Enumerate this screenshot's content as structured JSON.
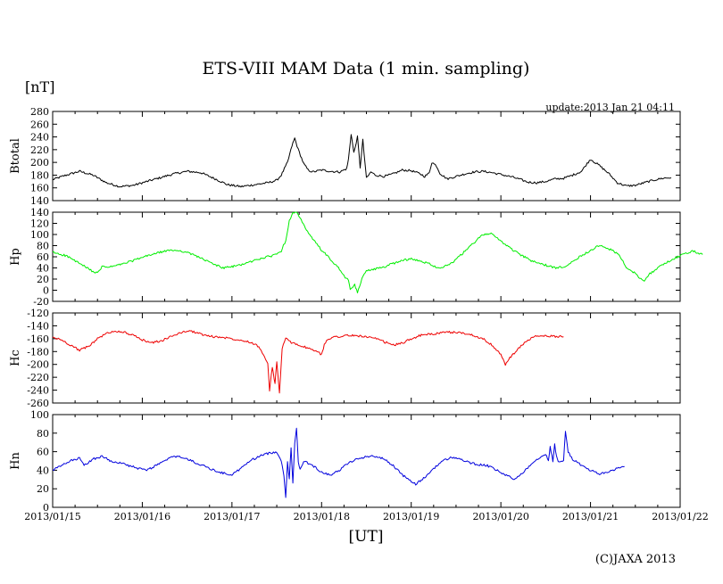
{
  "header": {
    "title": "ETS-VIII MAM Data (1 min. sampling)",
    "unit": "[nT]",
    "update": "update:2013 Jan 21 04:11"
  },
  "footer": {
    "xlabel": "[UT]",
    "copyright": "(C)JAXA 2013"
  },
  "chart_data": {
    "type": "line",
    "title": "ETS-VIII MAM Data (1 min. sampling)",
    "xlabel": "[UT]",
    "ylabel": "[nT]",
    "x_ticks": [
      "2013/01/15",
      "2013/01/16",
      "2013/01/17",
      "2013/01/18",
      "2013/01/19",
      "2013/01/20",
      "2013/01/21",
      "2013/01/22"
    ],
    "x_unit": "days since 2013/01/15 00:00 UT",
    "xlim": [
      0,
      7
    ],
    "panels": [
      {
        "name": "Btotal",
        "color": "#000000",
        "ylim": [
          140,
          280
        ],
        "yticks": [
          140,
          160,
          180,
          200,
          220,
          240,
          260,
          280
        ],
        "points": [
          [
            0,
            173
          ],
          [
            0.15,
            180
          ],
          [
            0.3,
            186
          ],
          [
            0.45,
            180
          ],
          [
            0.6,
            168
          ],
          [
            0.75,
            162
          ],
          [
            0.9,
            164
          ],
          [
            1.05,
            170
          ],
          [
            1.2,
            176
          ],
          [
            1.35,
            182
          ],
          [
            1.5,
            186
          ],
          [
            1.65,
            184
          ],
          [
            1.8,
            175
          ],
          [
            1.95,
            165
          ],
          [
            2.1,
            162
          ],
          [
            2.25,
            165
          ],
          [
            2.4,
            168
          ],
          [
            2.5,
            172
          ],
          [
            2.55,
            180
          ],
          [
            2.62,
            200
          ],
          [
            2.67,
            226
          ],
          [
            2.7,
            238
          ],
          [
            2.74,
            220
          ],
          [
            2.8,
            198
          ],
          [
            2.85,
            188
          ],
          [
            2.9,
            185
          ],
          [
            3.0,
            188
          ],
          [
            3.1,
            186
          ],
          [
            3.2,
            185
          ],
          [
            3.28,
            190
          ],
          [
            3.3,
            205
          ],
          [
            3.33,
            245
          ],
          [
            3.36,
            215
          ],
          [
            3.4,
            240
          ],
          [
            3.43,
            192
          ],
          [
            3.46,
            235
          ],
          [
            3.5,
            175
          ],
          [
            3.55,
            185
          ],
          [
            3.6,
            180
          ],
          [
            3.7,
            178
          ],
          [
            3.8,
            182
          ],
          [
            3.9,
            188
          ],
          [
            4.0,
            187
          ],
          [
            4.1,
            182
          ],
          [
            4.15,
            178
          ],
          [
            4.2,
            183
          ],
          [
            4.23,
            200
          ],
          [
            4.28,
            195
          ],
          [
            4.32,
            183
          ],
          [
            4.4,
            174
          ],
          [
            4.5,
            178
          ],
          [
            4.6,
            182
          ],
          [
            4.7,
            185
          ],
          [
            4.8,
            186
          ],
          [
            4.9,
            184
          ],
          [
            5.0,
            181
          ],
          [
            5.1,
            178
          ],
          [
            5.2,
            174
          ],
          [
            5.3,
            169
          ],
          [
            5.4,
            168
          ],
          [
            5.5,
            170
          ],
          [
            5.6,
            174
          ],
          [
            5.7,
            175
          ],
          [
            5.8,
            180
          ],
          [
            5.9,
            186
          ],
          [
            5.95,
            196
          ],
          [
            6.0,
            205
          ],
          [
            6.05,
            200
          ],
          [
            6.1,
            195
          ],
          [
            6.2,
            183
          ],
          [
            6.3,
            168
          ],
          [
            6.4,
            163
          ],
          [
            6.5,
            164
          ],
          [
            6.6,
            168
          ],
          [
            6.7,
            172
          ],
          [
            6.8,
            175
          ],
          [
            6.9,
            176
          ]
        ]
      },
      {
        "name": "Hp",
        "color": "#00ee00",
        "ylim": [
          -20,
          140
        ],
        "yticks": [
          -20,
          0,
          20,
          40,
          60,
          80,
          100,
          120,
          140
        ],
        "points": [
          [
            0,
            68
          ],
          [
            0.15,
            62
          ],
          [
            0.3,
            48
          ],
          [
            0.4,
            38
          ],
          [
            0.5,
            30
          ],
          [
            0.55,
            42
          ],
          [
            0.65,
            42
          ],
          [
            0.8,
            48
          ],
          [
            0.95,
            56
          ],
          [
            1.1,
            64
          ],
          [
            1.25,
            70
          ],
          [
            1.35,
            72
          ],
          [
            1.45,
            70
          ],
          [
            1.6,
            62
          ],
          [
            1.75,
            50
          ],
          [
            1.9,
            40
          ],
          [
            2.0,
            42
          ],
          [
            2.15,
            48
          ],
          [
            2.3,
            56
          ],
          [
            2.45,
            62
          ],
          [
            2.55,
            70
          ],
          [
            2.6,
            90
          ],
          [
            2.64,
            125
          ],
          [
            2.68,
            140
          ],
          [
            2.72,
            140
          ],
          [
            2.76,
            130
          ],
          [
            2.82,
            110
          ],
          [
            2.9,
            92
          ],
          [
            3.0,
            72
          ],
          [
            3.1,
            55
          ],
          [
            3.2,
            38
          ],
          [
            3.25,
            25
          ],
          [
            3.3,
            18
          ],
          [
            3.32,
            0
          ],
          [
            3.37,
            10
          ],
          [
            3.4,
            -5
          ],
          [
            3.45,
            20
          ],
          [
            3.5,
            36
          ],
          [
            3.6,
            38
          ],
          [
            3.7,
            42
          ],
          [
            3.8,
            48
          ],
          [
            3.9,
            54
          ],
          [
            4.0,
            56
          ],
          [
            4.1,
            52
          ],
          [
            4.2,
            48
          ],
          [
            4.3,
            40
          ],
          [
            4.4,
            44
          ],
          [
            4.5,
            55
          ],
          [
            4.6,
            70
          ],
          [
            4.7,
            85
          ],
          [
            4.8,
            100
          ],
          [
            4.88,
            102
          ],
          [
            4.95,
            95
          ],
          [
            5.05,
            82
          ],
          [
            5.2,
            65
          ],
          [
            5.35,
            52
          ],
          [
            5.5,
            45
          ],
          [
            5.6,
            40
          ],
          [
            5.7,
            42
          ],
          [
            5.8,
            52
          ],
          [
            5.9,
            62
          ],
          [
            6.0,
            72
          ],
          [
            6.1,
            80
          ],
          [
            6.2,
            75
          ],
          [
            6.3,
            66
          ],
          [
            6.35,
            55
          ],
          [
            6.4,
            40
          ],
          [
            6.5,
            30
          ],
          [
            6.55,
            22
          ],
          [
            6.6,
            18
          ],
          [
            6.65,
            28
          ],
          [
            6.75,
            40
          ],
          [
            6.85,
            50
          ],
          [
            6.95,
            58
          ],
          [
            7.05,
            66
          ],
          [
            7.15,
            70
          ],
          [
            7.25,
            64
          ]
        ]
      },
      {
        "name": "Hc",
        "color": "#ee0000",
        "ylim": [
          -260,
          -120
        ],
        "yticks": [
          -260,
          -240,
          -220,
          -200,
          -180,
          -160,
          -140,
          -120
        ],
        "points": [
          [
            0,
            -158
          ],
          [
            0.1,
            -162
          ],
          [
            0.2,
            -170
          ],
          [
            0.3,
            -178
          ],
          [
            0.4,
            -172
          ],
          [
            0.5,
            -160
          ],
          [
            0.6,
            -152
          ],
          [
            0.7,
            -148
          ],
          [
            0.8,
            -150
          ],
          [
            0.9,
            -155
          ],
          [
            1.0,
            -162
          ],
          [
            1.1,
            -166
          ],
          [
            1.2,
            -164
          ],
          [
            1.3,
            -158
          ],
          [
            1.4,
            -152
          ],
          [
            1.5,
            -148
          ],
          [
            1.6,
            -150
          ],
          [
            1.7,
            -155
          ],
          [
            1.8,
            -157
          ],
          [
            1.9,
            -158
          ],
          [
            2.0,
            -160
          ],
          [
            2.1,
            -162
          ],
          [
            2.2,
            -165
          ],
          [
            2.3,
            -172
          ],
          [
            2.35,
            -185
          ],
          [
            2.4,
            -200
          ],
          [
            2.42,
            -240
          ],
          [
            2.45,
            -205
          ],
          [
            2.48,
            -230
          ],
          [
            2.5,
            -195
          ],
          [
            2.53,
            -245
          ],
          [
            2.56,
            -175
          ],
          [
            2.6,
            -160
          ],
          [
            2.65,
            -165
          ],
          [
            2.75,
            -170
          ],
          [
            2.85,
            -175
          ],
          [
            2.95,
            -180
          ],
          [
            3.0,
            -185
          ],
          [
            3.03,
            -170
          ],
          [
            3.07,
            -160
          ],
          [
            3.15,
            -157
          ],
          [
            3.3,
            -155
          ],
          [
            3.45,
            -156
          ],
          [
            3.6,
            -160
          ],
          [
            3.7,
            -165
          ],
          [
            3.8,
            -170
          ],
          [
            3.9,
            -167
          ],
          [
            4.0,
            -160
          ],
          [
            4.1,
            -155
          ],
          [
            4.2,
            -153
          ],
          [
            4.3,
            -152
          ],
          [
            4.4,
            -150
          ],
          [
            4.5,
            -150
          ],
          [
            4.6,
            -152
          ],
          [
            4.7,
            -155
          ],
          [
            4.8,
            -160
          ],
          [
            4.9,
            -170
          ],
          [
            5.0,
            -185
          ],
          [
            5.05,
            -200
          ],
          [
            5.1,
            -190
          ],
          [
            5.2,
            -175
          ],
          [
            5.3,
            -162
          ],
          [
            5.4,
            -156
          ],
          [
            5.55,
            -156
          ],
          [
            5.7,
            -157
          ]
        ]
      },
      {
        "name": "Hn",
        "color": "#0000dd",
        "ylim": [
          0,
          100
        ],
        "yticks": [
          0,
          20,
          40,
          60,
          80,
          100
        ],
        "points": [
          [
            0,
            40
          ],
          [
            0.1,
            45
          ],
          [
            0.2,
            50
          ],
          [
            0.3,
            53
          ],
          [
            0.35,
            45
          ],
          [
            0.45,
            52
          ],
          [
            0.55,
            55
          ],
          [
            0.65,
            50
          ],
          [
            0.75,
            48
          ],
          [
            0.85,
            45
          ],
          [
            0.95,
            42
          ],
          [
            1.05,
            40
          ],
          [
            1.15,
            45
          ],
          [
            1.25,
            50
          ],
          [
            1.35,
            55
          ],
          [
            1.45,
            54
          ],
          [
            1.55,
            50
          ],
          [
            1.65,
            46
          ],
          [
            1.75,
            42
          ],
          [
            1.85,
            38
          ],
          [
            1.95,
            36
          ],
          [
            2.0,
            35
          ],
          [
            2.1,
            42
          ],
          [
            2.2,
            50
          ],
          [
            2.3,
            55
          ],
          [
            2.4,
            58
          ],
          [
            2.5,
            60
          ],
          [
            2.55,
            50
          ],
          [
            2.58,
            35
          ],
          [
            2.6,
            10
          ],
          [
            2.62,
            50
          ],
          [
            2.64,
            30
          ],
          [
            2.66,
            65
          ],
          [
            2.68,
            25
          ],
          [
            2.7,
            70
          ],
          [
            2.72,
            85
          ],
          [
            2.74,
            50
          ],
          [
            2.76,
            40
          ],
          [
            2.8,
            50
          ],
          [
            2.9,
            45
          ],
          [
            3.0,
            38
          ],
          [
            3.1,
            35
          ],
          [
            3.2,
            40
          ],
          [
            3.3,
            48
          ],
          [
            3.4,
            52
          ],
          [
            3.5,
            55
          ],
          [
            3.6,
            55
          ],
          [
            3.7,
            52
          ],
          [
            3.8,
            45
          ],
          [
            3.9,
            35
          ],
          [
            4.0,
            28
          ],
          [
            4.05,
            25
          ],
          [
            4.15,
            32
          ],
          [
            4.25,
            42
          ],
          [
            4.35,
            50
          ],
          [
            4.45,
            54
          ],
          [
            4.55,
            52
          ],
          [
            4.65,
            48
          ],
          [
            4.75,
            46
          ],
          [
            4.85,
            45
          ],
          [
            4.95,
            40
          ],
          [
            5.05,
            35
          ],
          [
            5.15,
            30
          ],
          [
            5.25,
            38
          ],
          [
            5.35,
            48
          ],
          [
            5.45,
            55
          ],
          [
            5.5,
            58
          ],
          [
            5.53,
            50
          ],
          [
            5.55,
            65
          ],
          [
            5.58,
            50
          ],
          [
            5.6,
            68
          ],
          [
            5.62,
            55
          ],
          [
            5.65,
            48
          ],
          [
            5.7,
            50
          ],
          [
            5.72,
            82
          ],
          [
            5.75,
            60
          ],
          [
            5.8,
            52
          ],
          [
            5.9,
            45
          ],
          [
            6.0,
            40
          ],
          [
            6.1,
            36
          ],
          [
            6.2,
            38
          ],
          [
            6.3,
            42
          ],
          [
            6.38,
            44
          ]
        ]
      }
    ]
  }
}
